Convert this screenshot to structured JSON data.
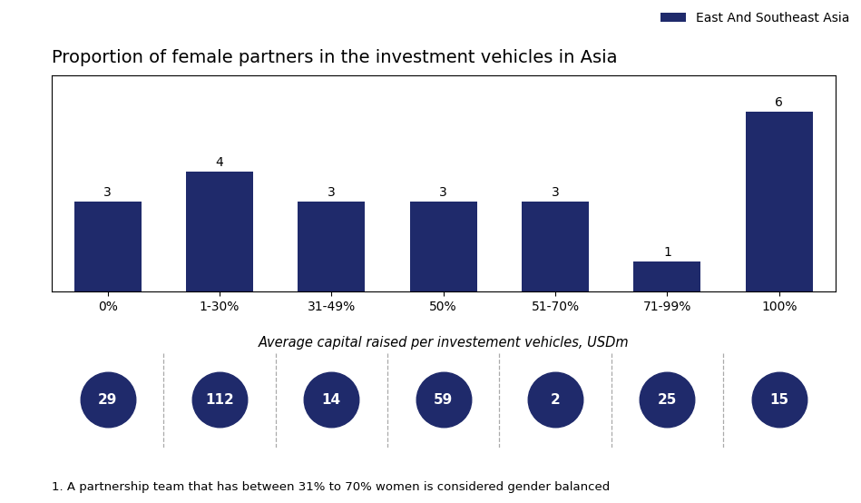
{
  "chart_data": [
    {
      "type": "bar",
      "title": "Proportion of female partners in the investment vehicles in Asia",
      "categories": [
        "0%",
        "1-30%",
        "31-49%",
        "50%",
        "51-70%",
        "71-99%",
        "100%"
      ],
      "series": [
        {
          "name": "East And Southeast Asia",
          "color": "#1F2A6B",
          "values": [
            3,
            4,
            3,
            3,
            3,
            1,
            6
          ]
        }
      ],
      "ylim": [
        0,
        7.2
      ],
      "tick_labels": "x",
      "data_labels": true,
      "legend": "upper right",
      "annotations": [
        "1. A partnership team that has between 31% to 70% women is considered gender balanced"
      ]
    },
    {
      "type": "circle",
      "xlabel": "Average capital raised per investement vehicles, USDm",
      "categories": [
        "0%",
        "1-30%",
        "31-49%",
        "50%",
        "51-70%",
        "71-99%",
        "100%"
      ],
      "values": [
        29,
        112,
        14,
        59,
        2,
        25,
        15
      ],
      "color": "#1F2A6B",
      "data_labels": true,
      "tick_labels": false
    }
  ]
}
